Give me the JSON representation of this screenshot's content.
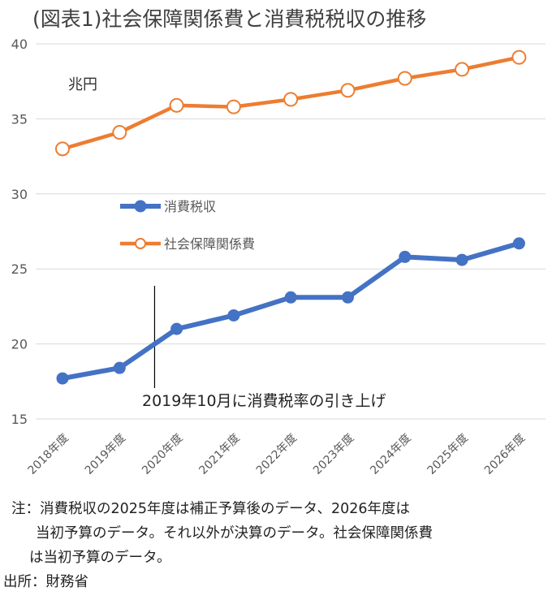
{
  "title": "(図表1)社会保障関係費と消費税税収の推移",
  "chart_data": {
    "type": "line",
    "categories": [
      "2018年度",
      "2019年度",
      "2020年度",
      "2021年度",
      "2022年度",
      "2023年度",
      "2024年度",
      "2025年度",
      "2026年度"
    ],
    "series": [
      {
        "name": "消費税収",
        "color": "#4472c4",
        "marker": "filled-circle",
        "values": [
          17.7,
          18.4,
          21.0,
          21.9,
          23.1,
          23.1,
          25.8,
          25.6,
          26.7
        ]
      },
      {
        "name": "社会保障関係費",
        "color": "#ed7d31",
        "marker": "hollow-circle",
        "values": [
          33.0,
          34.1,
          35.9,
          35.8,
          36.3,
          36.9,
          37.7,
          38.3,
          39.1
        ]
      }
    ],
    "ylim": [
      15,
      40
    ],
    "yticks": [
      15,
      20,
      25,
      30,
      35,
      40
    ],
    "unit_label": "兆円",
    "grid": true,
    "legend_position": "inside-left",
    "annotation": {
      "text": "2019年10月に消費税率の引き上げ",
      "between_categories": [
        "2019年度",
        "2020年度"
      ]
    }
  },
  "notes": {
    "line1": "注：消費税収の2025年度は補正予算後のデータ、2026年度は",
    "line2": "当初予算のデータ。それ以外が決算のデータ。社会保障関係費",
    "line3": "は当初予算のデータ。",
    "source": "出所：財務省"
  }
}
